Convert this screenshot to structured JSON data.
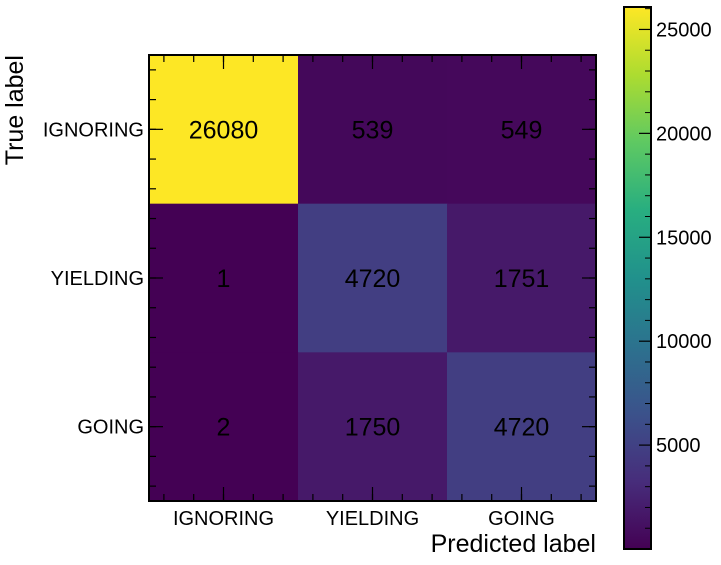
{
  "chart_data": {
    "type": "heatmap",
    "title": "",
    "xlabel": "Predicted label",
    "ylabel": "True label",
    "x_categories": [
      "IGNORING",
      "YIELDING",
      "GOING"
    ],
    "y_categories": [
      "IGNORING",
      "YIELDING",
      "GOING"
    ],
    "values": [
      [
        26080,
        539,
        549
      ],
      [
        1,
        4720,
        1751
      ],
      [
        2,
        1750,
        4720
      ]
    ],
    "colormap": "viridis",
    "colorbar": {
      "vmin": 1,
      "vmax": 26080,
      "ticks": [
        5000,
        10000,
        15000,
        20000,
        25000
      ],
      "tick_labels": [
        "5000",
        "10000",
        "15000",
        "20000",
        "25000"
      ]
    },
    "text_colors": {
      "low": "#fde725",
      "high": "#440154"
    }
  }
}
